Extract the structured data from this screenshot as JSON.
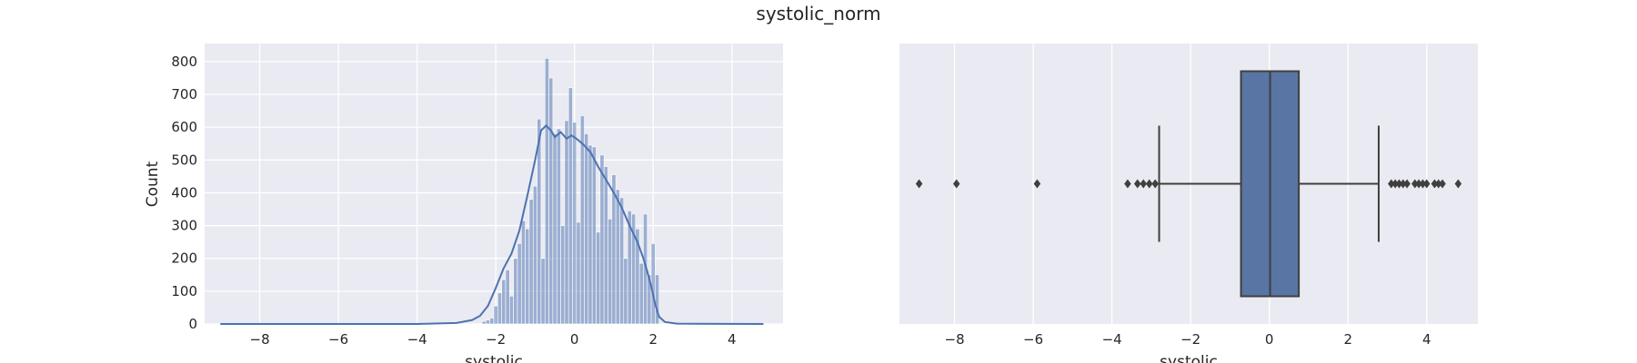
{
  "figure": {
    "suptitle": "systolic_norm"
  },
  "colors": {
    "axes_bg": "#eaeaf2",
    "grid": "#ffffff",
    "hist_fill": "#4c72b0",
    "kde_line": "#4c72b0",
    "box_fill": "#5975a4",
    "box_edge": "#3f3f3f"
  },
  "chart_data": [
    {
      "type": "histogram",
      "xlabel": "systolic",
      "ylabel": "Count",
      "xlim": [
        -9.4,
        5.3
      ],
      "ylim": [
        0,
        855
      ],
      "xticks": [
        -8,
        -6,
        -4,
        -2,
        0,
        2,
        4
      ],
      "yticks": [
        0,
        100,
        200,
        300,
        400,
        500,
        600,
        700,
        800
      ],
      "grid": true,
      "kde": true,
      "bins_approx": [
        {
          "x": -2.3,
          "count": 8
        },
        {
          "x": -2.2,
          "count": 12
        },
        {
          "x": -2.1,
          "count": 18
        },
        {
          "x": -2.0,
          "count": 55
        },
        {
          "x": -1.9,
          "count": 95
        },
        {
          "x": -1.8,
          "count": 135
        },
        {
          "x": -1.7,
          "count": 165
        },
        {
          "x": -1.6,
          "count": 85
        },
        {
          "x": -1.5,
          "count": 200
        },
        {
          "x": -1.4,
          "count": 245
        },
        {
          "x": -1.3,
          "count": 315
        },
        {
          "x": -1.2,
          "count": 290
        },
        {
          "x": -1.1,
          "count": 380
        },
        {
          "x": -1.0,
          "count": 420
        },
        {
          "x": -0.9,
          "count": 625
        },
        {
          "x": -0.8,
          "count": 200
        },
        {
          "x": -0.7,
          "count": 810
        },
        {
          "x": -0.6,
          "count": 750
        },
        {
          "x": -0.5,
          "count": 580
        },
        {
          "x": -0.4,
          "count": 595
        },
        {
          "x": -0.3,
          "count": 300
        },
        {
          "x": -0.2,
          "count": 620
        },
        {
          "x": -0.1,
          "count": 720
        },
        {
          "x": 0.0,
          "count": 615
        },
        {
          "x": 0.1,
          "count": 310
        },
        {
          "x": 0.2,
          "count": 635
        },
        {
          "x": 0.3,
          "count": 580
        },
        {
          "x": 0.4,
          "count": 545
        },
        {
          "x": 0.5,
          "count": 540
        },
        {
          "x": 0.6,
          "count": 280
        },
        {
          "x": 0.7,
          "count": 515
        },
        {
          "x": 0.8,
          "count": 480
        },
        {
          "x": 0.9,
          "count": 320
        },
        {
          "x": 1.0,
          "count": 455
        },
        {
          "x": 1.1,
          "count": 410
        },
        {
          "x": 1.2,
          "count": 385
        },
        {
          "x": 1.3,
          "count": 200
        },
        {
          "x": 1.4,
          "count": 345
        },
        {
          "x": 1.5,
          "count": 335
        },
        {
          "x": 1.6,
          "count": 290
        },
        {
          "x": 1.7,
          "count": 185
        },
        {
          "x": 1.8,
          "count": 335
        },
        {
          "x": 1.9,
          "count": 150
        },
        {
          "x": 2.0,
          "count": 245
        },
        {
          "x": 2.1,
          "count": 150
        }
      ],
      "kde_points": [
        [
          -9.0,
          0
        ],
        [
          -4.0,
          0
        ],
        [
          -3.0,
          3
        ],
        [
          -2.6,
          12
        ],
        [
          -2.4,
          25
        ],
        [
          -2.2,
          55
        ],
        [
          -2.0,
          110
        ],
        [
          -1.8,
          170
        ],
        [
          -1.6,
          215
        ],
        [
          -1.4,
          285
        ],
        [
          -1.2,
          390
        ],
        [
          -1.0,
          500
        ],
        [
          -0.85,
          590
        ],
        [
          -0.72,
          605
        ],
        [
          -0.6,
          590
        ],
        [
          -0.5,
          570
        ],
        [
          -0.35,
          585
        ],
        [
          -0.2,
          565
        ],
        [
          -0.08,
          575
        ],
        [
          0.05,
          565
        ],
        [
          0.2,
          550
        ],
        [
          0.4,
          525
        ],
        [
          0.6,
          480
        ],
        [
          0.8,
          440
        ],
        [
          1.0,
          400
        ],
        [
          1.2,
          355
        ],
        [
          1.4,
          300
        ],
        [
          1.6,
          250
        ],
        [
          1.75,
          200
        ],
        [
          1.85,
          160
        ],
        [
          1.95,
          115
        ],
        [
          2.05,
          60
        ],
        [
          2.15,
          22
        ],
        [
          2.3,
          6
        ],
        [
          2.6,
          1
        ],
        [
          4.8,
          0
        ]
      ]
    },
    {
      "type": "boxplot",
      "xlabel": "systolic",
      "xlim": [
        -9.4,
        5.3
      ],
      "xticks": [
        -8,
        -6,
        -4,
        -2,
        0,
        2,
        4
      ],
      "grid": true,
      "q1": -0.72,
      "median": 0.02,
      "q3": 0.75,
      "whisker_low": -2.8,
      "whisker_high": 2.78,
      "outliers": [
        -8.9,
        -7.95,
        -5.9,
        -3.6,
        -3.35,
        -3.2,
        -3.05,
        -2.9,
        3.1,
        3.2,
        3.3,
        3.4,
        3.5,
        3.7,
        3.8,
        3.9,
        4.0,
        4.2,
        4.3,
        4.4,
        4.8
      ]
    }
  ]
}
